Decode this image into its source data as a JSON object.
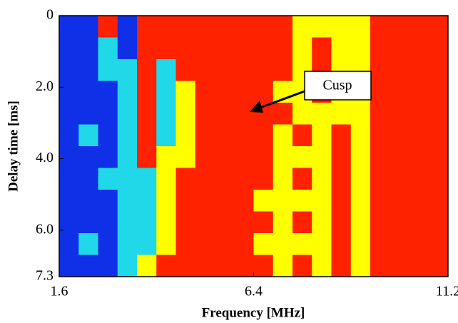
{
  "chart_data": {
    "type": "heatmap",
    "x_label": "Frequency [MHz]",
    "y_label": "Delay time [ms]",
    "annotation": "Cusp",
    "xlim": [
      1.6,
      11.2
    ],
    "xticks": [
      1.6,
      6.4,
      11.2
    ],
    "ylim": [
      0,
      7.3
    ],
    "y_reversed": true,
    "yticks": [
      0,
      {
        "value": 2,
        "label": "2.0"
      },
      {
        "value": 4,
        "label": "4.0"
      },
      {
        "value": 6,
        "label": "6.0"
      },
      7.3
    ],
    "colors": [
      "#1030e8",
      "#20d8e8",
      "#ffff00",
      "#ff2200"
    ],
    "z": [
      [
        0,
        0,
        3,
        0,
        3,
        3,
        3,
        3,
        3,
        3,
        3,
        3,
        2,
        2,
        2,
        2,
        3,
        3,
        3,
        3
      ],
      [
        0,
        0,
        1,
        0,
        3,
        3,
        3,
        3,
        3,
        3,
        3,
        3,
        2,
        3,
        2,
        2,
        3,
        3,
        3,
        3
      ],
      [
        0,
        0,
        1,
        1,
        3,
        1,
        3,
        3,
        3,
        3,
        3,
        3,
        2,
        3,
        2,
        2,
        3,
        3,
        3,
        3
      ],
      [
        0,
        0,
        0,
        1,
        3,
        1,
        2,
        3,
        3,
        3,
        3,
        2,
        2,
        3,
        2,
        2,
        3,
        3,
        3,
        3
      ],
      [
        0,
        0,
        0,
        1,
        3,
        1,
        2,
        3,
        3,
        3,
        3,
        3,
        2,
        2,
        2,
        2,
        3,
        3,
        3,
        3
      ],
      [
        0,
        1,
        0,
        1,
        3,
        1,
        2,
        3,
        3,
        3,
        3,
        2,
        3,
        2,
        3,
        2,
        3,
        3,
        3,
        3
      ],
      [
        0,
        0,
        0,
        1,
        3,
        2,
        2,
        3,
        3,
        3,
        3,
        2,
        2,
        2,
        3,
        2,
        3,
        3,
        3,
        3
      ],
      [
        0,
        0,
        1,
        1,
        1,
        2,
        3,
        3,
        3,
        3,
        3,
        2,
        3,
        2,
        3,
        2,
        3,
        3,
        3,
        3
      ],
      [
        0,
        0,
        0,
        1,
        1,
        2,
        3,
        3,
        3,
        3,
        2,
        2,
        2,
        2,
        3,
        2,
        3,
        3,
        3,
        3
      ],
      [
        0,
        0,
        0,
        1,
        1,
        2,
        3,
        3,
        3,
        3,
        3,
        2,
        3,
        2,
        3,
        2,
        3,
        3,
        3,
        3
      ],
      [
        0,
        1,
        0,
        1,
        1,
        2,
        3,
        3,
        3,
        3,
        2,
        2,
        2,
        2,
        3,
        2,
        3,
        3,
        3,
        3
      ],
      [
        0,
        0,
        0,
        1,
        2,
        3,
        3,
        3,
        3,
        3,
        3,
        2,
        3,
        2,
        3,
        2,
        3,
        3,
        3,
        3
      ]
    ]
  }
}
